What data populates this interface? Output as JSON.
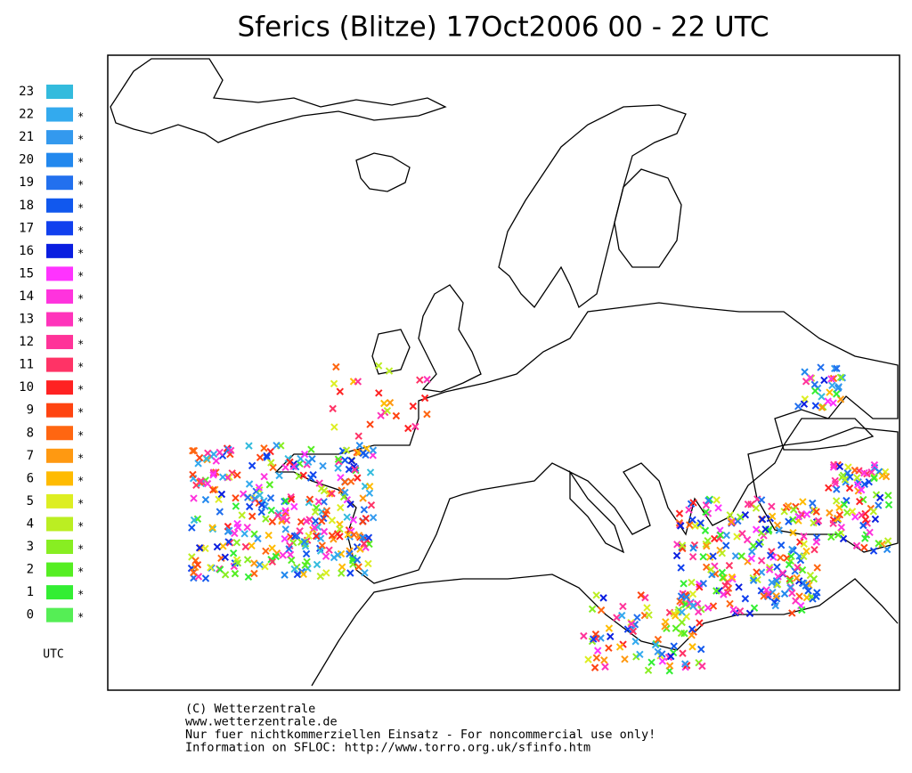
{
  "title": "Sferics (Blitze) 17Oct2006 00 - 22 UTC",
  "legend": {
    "unit": "UTC",
    "items": [
      {
        "hour": "23",
        "color": "#33bbdd"
      },
      {
        "hour": "22",
        "color": "#33aaee",
        "mark": "*"
      },
      {
        "hour": "21",
        "color": "#3399ee",
        "mark": "*"
      },
      {
        "hour": "20",
        "color": "#2288ee",
        "mark": "*"
      },
      {
        "hour": "19",
        "color": "#2270ee",
        "mark": "*"
      },
      {
        "hour": "18",
        "color": "#1158ee",
        "mark": "*"
      },
      {
        "hour": "17",
        "color": "#1140ee",
        "mark": "*"
      },
      {
        "hour": "16",
        "color": "#0a1ee0",
        "mark": "*"
      },
      {
        "hour": "15",
        "color": "#ff33ff",
        "mark": "*"
      },
      {
        "hour": "14",
        "color": "#ff33dd",
        "mark": "*"
      },
      {
        "hour": "13",
        "color": "#ff33bb",
        "mark": "*"
      },
      {
        "hour": "12",
        "color": "#ff3399",
        "mark": "*"
      },
      {
        "hour": "11",
        "color": "#ff3366",
        "mark": "*"
      },
      {
        "hour": "10",
        "color": "#ff2222",
        "mark": "*"
      },
      {
        "hour": "9",
        "color": "#ff4411",
        "mark": "*"
      },
      {
        "hour": "8",
        "color": "#ff6611",
        "mark": "*"
      },
      {
        "hour": "7",
        "color": "#ff9911",
        "mark": "*"
      },
      {
        "hour": "6",
        "color": "#ffbb00",
        "mark": "*"
      },
      {
        "hour": "5",
        "color": "#ddee22",
        "mark": "*"
      },
      {
        "hour": "4",
        "color": "#bbee22",
        "mark": "*"
      },
      {
        "hour": "3",
        "color": "#88ee22",
        "mark": "*"
      },
      {
        "hour": "2",
        "color": "#55ee22",
        "mark": "*"
      },
      {
        "hour": "1",
        "color": "#33ee33",
        "mark": "*"
      },
      {
        "hour": "0",
        "color": "#55ee55",
        "mark": "*"
      }
    ]
  },
  "footer": [
    "(C) Wetterzentrale",
    "www.wetterzentrale.de",
    "Nur fuer nichtkommerziellen Einsatz - For noncommercial use only!",
    "Information on SFLOC: http://www.torro.org.uk/sfinfo.htm"
  ]
}
